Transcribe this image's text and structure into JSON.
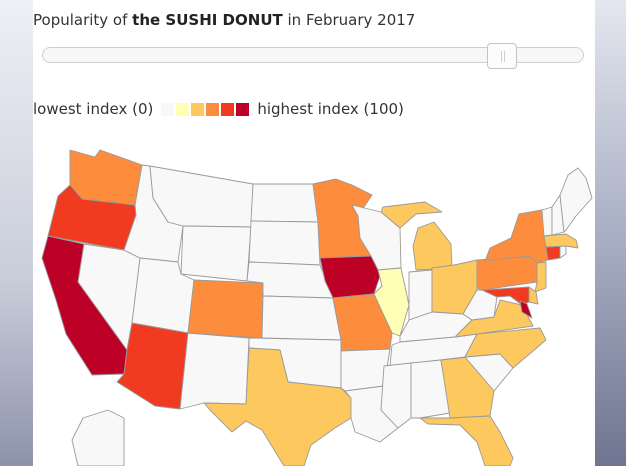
{
  "title": {
    "prefix": "Popularity of ",
    "emphasis": "the SUSHI DONUT",
    "suffix": " in February 2017"
  },
  "timeline_slider": {
    "position": 0.87
  },
  "legend": {
    "low_label": "lowest index (0)",
    "high_label": "highest index (100)",
    "colors": [
      "#f8f8f8",
      "#fefeb5",
      "#fdc95f",
      "#fd8c3c",
      "#f03b20",
      "#bd0026"
    ]
  },
  "map_data": {
    "type": "choropleth-us-states",
    "scale": "Google Trends popularity index 0-100",
    "states": {
      "WA": 3,
      "OR": 4,
      "CA": 5,
      "NV": 0,
      "ID": 0,
      "MT": 0,
      "WY": 0,
      "UT": 0,
      "AZ": 4,
      "NM": 0,
      "CO": 3,
      "ND": 0,
      "SD": 0,
      "NE": 0,
      "KS": 0,
      "OK": 0,
      "TX": 2,
      "MN": 3,
      "IA": 5,
      "MO": 3,
      "AR": 0,
      "LA": 0,
      "WI": 0,
      "IL": 1,
      "MI": 2,
      "IN": 0,
      "OH": 2,
      "KY": 0,
      "TN": 0,
      "MS": 0,
      "AL": 0,
      "GA": 2,
      "FL": 2,
      "SC": 0,
      "NC": 2,
      "VA": 2,
      "WV": 0,
      "PA": 3,
      "NY": 3,
      "NJ": 2,
      "DE": 2,
      "MD": 4,
      "DC": 5,
      "CT": 4,
      "RI": 0,
      "MA": 2,
      "VT": 0,
      "NH": 0,
      "ME": 0,
      "AK": 0
    }
  }
}
